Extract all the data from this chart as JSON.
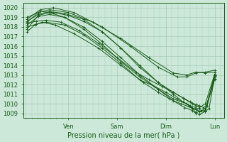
{
  "title": "",
  "xlabel": "Pression niveau de la mer( hPa )",
  "ylabel": "",
  "bg_color": "#cce8d8",
  "grid_color": "#a8ccb8",
  "line_color": "#1a5c1a",
  "x_tick_labels": [
    "Ven",
    "Sam",
    "Dim",
    "Lun"
  ],
  "x_tick_positions": [
    0.22,
    0.48,
    0.74,
    1.0
  ],
  "ylim": [
    1008.5,
    1020.5
  ],
  "xlim": [
    -0.02,
    1.05
  ],
  "yticks": [
    1009,
    1010,
    1011,
    1012,
    1013,
    1014,
    1015,
    1016,
    1017,
    1018,
    1019,
    1020
  ],
  "lines": [
    {
      "pts": [
        [
          0.0,
          1017.8
        ],
        [
          0.06,
          1019.2
        ],
        [
          0.12,
          1019.5
        ],
        [
          0.2,
          1019.0
        ],
        [
          0.3,
          1017.8
        ],
        [
          0.4,
          1016.2
        ],
        [
          0.5,
          1014.4
        ],
        [
          0.6,
          1012.8
        ],
        [
          0.7,
          1011.5
        ],
        [
          0.78,
          1010.5
        ],
        [
          0.85,
          1010.0
        ],
        [
          0.88,
          1009.5
        ],
        [
          0.9,
          1009.1
        ],
        [
          0.95,
          1009.3
        ],
        [
          1.0,
          1013.0
        ]
      ]
    },
    {
      "pts": [
        [
          0.0,
          1018.5
        ],
        [
          0.06,
          1019.5
        ],
        [
          0.12,
          1019.8
        ],
        [
          0.22,
          1019.5
        ],
        [
          0.35,
          1018.5
        ],
        [
          0.5,
          1016.8
        ],
        [
          0.65,
          1014.8
        ],
        [
          0.78,
          1013.2
        ],
        [
          0.85,
          1013.0
        ],
        [
          0.9,
          1013.3
        ],
        [
          0.95,
          1013.2
        ],
        [
          1.0,
          1013.3
        ]
      ]
    },
    {
      "pts": [
        [
          0.0,
          1018.8
        ],
        [
          0.07,
          1019.8
        ],
        [
          0.14,
          1020.0
        ],
        [
          0.25,
          1019.5
        ],
        [
          0.4,
          1018.0
        ],
        [
          0.55,
          1016.0
        ],
        [
          0.7,
          1013.8
        ],
        [
          0.8,
          1012.8
        ],
        [
          0.85,
          1012.8
        ],
        [
          0.9,
          1013.2
        ],
        [
          0.95,
          1013.3
        ],
        [
          1.0,
          1013.5
        ]
      ]
    },
    {
      "pts": [
        [
          0.0,
          1019.0
        ],
        [
          0.07,
          1019.6
        ],
        [
          0.14,
          1019.5
        ],
        [
          0.22,
          1019.2
        ],
        [
          0.3,
          1018.6
        ],
        [
          0.4,
          1017.5
        ],
        [
          0.5,
          1015.8
        ],
        [
          0.6,
          1014.0
        ],
        [
          0.7,
          1012.2
        ],
        [
          0.78,
          1011.0
        ],
        [
          0.83,
          1010.2
        ],
        [
          0.87,
          1009.8
        ],
        [
          0.9,
          1009.6
        ],
        [
          0.93,
          1009.3
        ],
        [
          0.95,
          1009.2
        ],
        [
          0.97,
          1009.5
        ],
        [
          1.0,
          1012.8
        ]
      ]
    },
    {
      "pts": [
        [
          0.0,
          1018.2
        ],
        [
          0.06,
          1019.1
        ],
        [
          0.12,
          1019.3
        ],
        [
          0.2,
          1019.0
        ],
        [
          0.3,
          1018.0
        ],
        [
          0.4,
          1016.5
        ],
        [
          0.5,
          1014.8
        ],
        [
          0.6,
          1013.0
        ],
        [
          0.7,
          1011.5
        ],
        [
          0.78,
          1010.3
        ],
        [
          0.84,
          1009.6
        ],
        [
          0.88,
          1009.3
        ],
        [
          0.9,
          1009.0
        ],
        [
          0.92,
          1008.9
        ],
        [
          0.95,
          1009.2
        ],
        [
          1.0,
          1012.9
        ]
      ]
    },
    {
      "pts": [
        [
          0.0,
          1018.0
        ],
        [
          0.05,
          1018.3
        ],
        [
          0.1,
          1018.5
        ],
        [
          0.2,
          1018.2
        ],
        [
          0.3,
          1017.2
        ],
        [
          0.4,
          1015.8
        ],
        [
          0.5,
          1014.2
        ],
        [
          0.6,
          1012.5
        ],
        [
          0.68,
          1011.8
        ],
        [
          0.74,
          1011.2
        ],
        [
          0.8,
          1010.5
        ],
        [
          0.85,
          1010.0
        ],
        [
          0.88,
          1009.6
        ],
        [
          0.9,
          1009.4
        ],
        [
          0.92,
          1009.2
        ],
        [
          0.95,
          1009.5
        ],
        [
          1.0,
          1012.6
        ]
      ]
    },
    {
      "pts": [
        [
          0.0,
          1018.6
        ],
        [
          0.06,
          1019.3
        ],
        [
          0.12,
          1019.6
        ],
        [
          0.2,
          1019.4
        ],
        [
          0.3,
          1018.8
        ],
        [
          0.4,
          1017.5
        ],
        [
          0.5,
          1015.8
        ],
        [
          0.6,
          1013.8
        ],
        [
          0.7,
          1012.2
        ],
        [
          0.78,
          1011.2
        ],
        [
          0.84,
          1010.5
        ],
        [
          0.88,
          1010.0
        ],
        [
          0.9,
          1009.8
        ],
        [
          0.92,
          1009.6
        ],
        [
          0.95,
          1010.0
        ],
        [
          1.0,
          1013.1
        ]
      ]
    },
    {
      "pts": [
        [
          0.0,
          1018.4
        ],
        [
          0.05,
          1018.6
        ],
        [
          0.1,
          1018.7
        ],
        [
          0.18,
          1018.5
        ],
        [
          0.28,
          1017.6
        ],
        [
          0.38,
          1016.3
        ],
        [
          0.48,
          1014.8
        ],
        [
          0.58,
          1013.3
        ],
        [
          0.65,
          1012.5
        ],
        [
          0.72,
          1011.8
        ],
        [
          0.78,
          1011.2
        ],
        [
          0.83,
          1010.6
        ],
        [
          0.87,
          1010.2
        ],
        [
          0.9,
          1009.9
        ],
        [
          0.92,
          1009.8
        ],
        [
          0.94,
          1009.6
        ],
        [
          0.96,
          1009.8
        ],
        [
          1.0,
          1013.0
        ]
      ]
    },
    {
      "pts": [
        [
          0.0,
          1017.5
        ],
        [
          0.04,
          1018.2
        ],
        [
          0.08,
          1018.5
        ],
        [
          0.15,
          1018.2
        ],
        [
          0.25,
          1017.3
        ],
        [
          0.38,
          1015.8
        ],
        [
          0.5,
          1014.0
        ],
        [
          0.62,
          1012.2
        ],
        [
          0.7,
          1011.2
        ],
        [
          0.76,
          1010.5
        ],
        [
          0.82,
          1010.0
        ],
        [
          0.86,
          1009.7
        ],
        [
          0.9,
          1009.4
        ],
        [
          0.92,
          1009.2
        ],
        [
          0.95,
          1009.3
        ],
        [
          1.0,
          1012.5
        ]
      ]
    }
  ]
}
